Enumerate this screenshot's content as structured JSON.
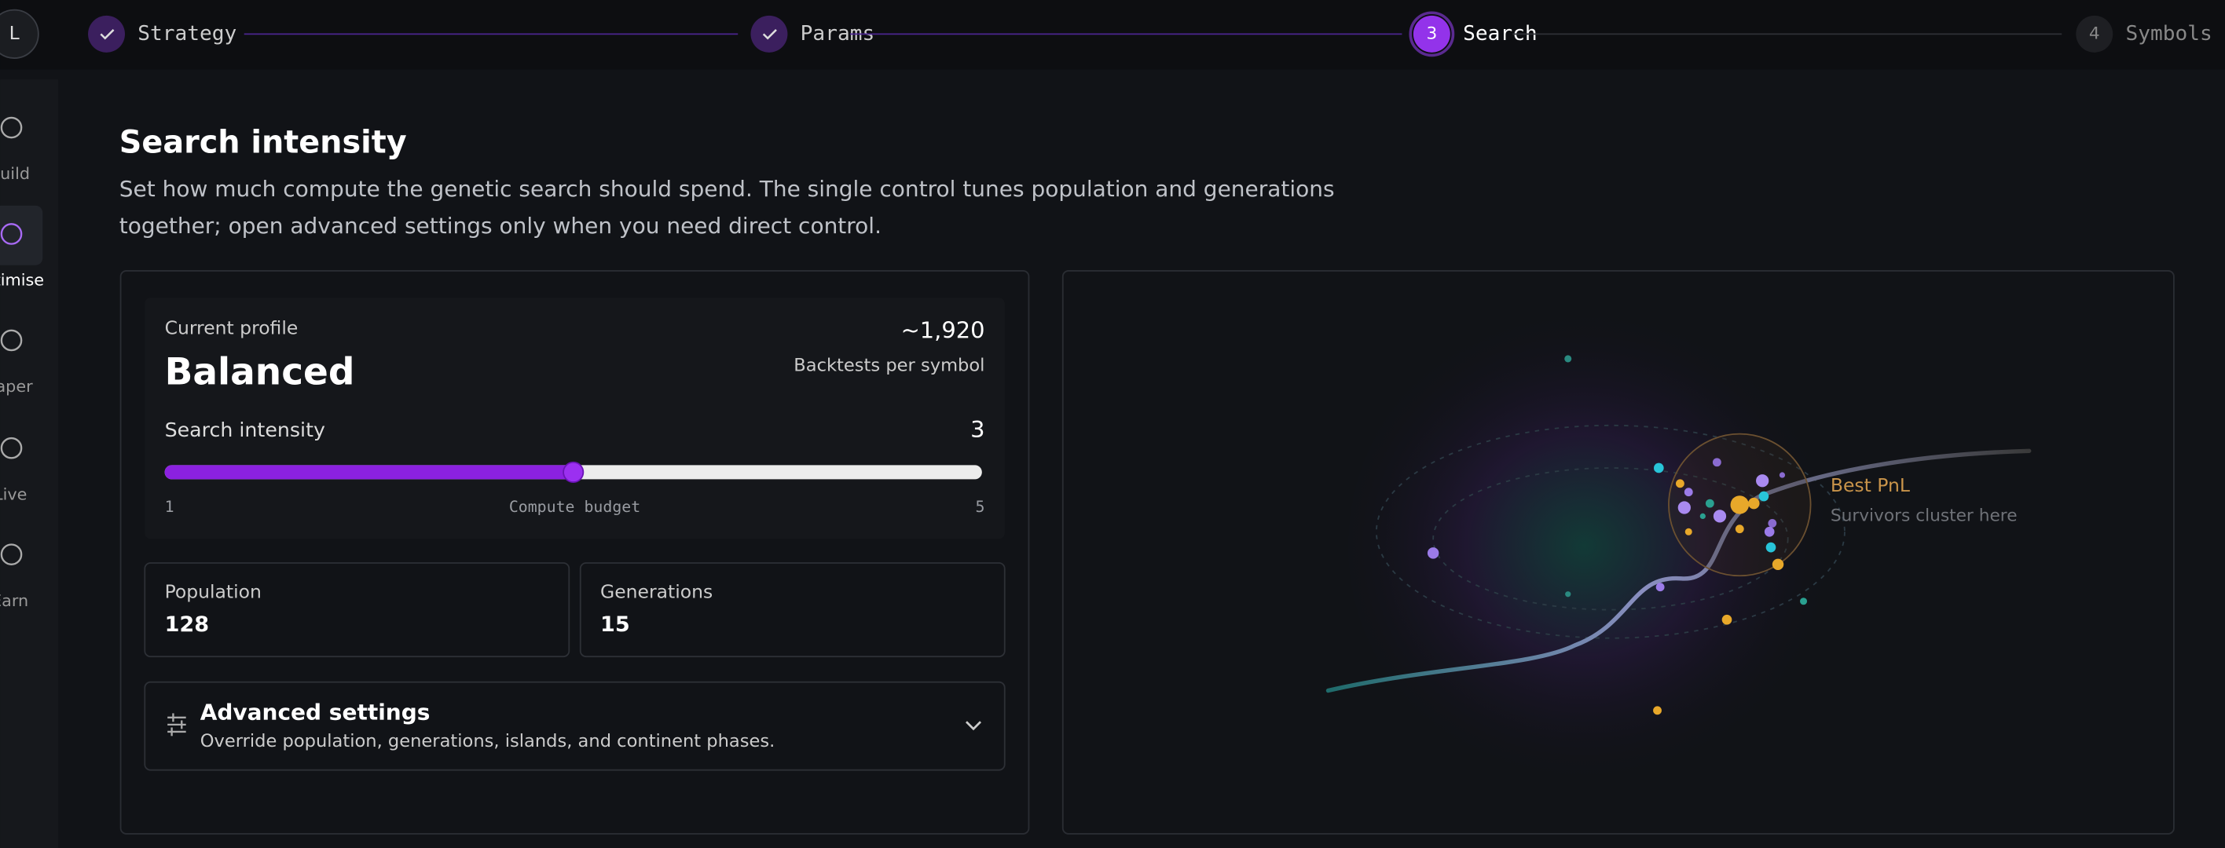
{
  "avatar": "L",
  "steps": [
    {
      "label": "Strategy",
      "status": "done"
    },
    {
      "label": "Params",
      "status": "done"
    },
    {
      "number": "3",
      "label": "Search",
      "status": "active"
    },
    {
      "number": "4",
      "label": "Symbols",
      "status": "todo"
    }
  ],
  "sidebar": [
    {
      "label": "Build",
      "active": false
    },
    {
      "label": "Optimise",
      "active": true
    },
    {
      "label": "Paper",
      "active": false
    },
    {
      "label": "Live",
      "active": false
    },
    {
      "label": "Earn",
      "active": false
    }
  ],
  "section": {
    "title": "Search intensity",
    "description": [
      "Set how much compute the genetic search should spend. The single control tunes population and generations",
      "together; open advanced settings only when you need direct control."
    ]
  },
  "profile": {
    "caption": "Current profile",
    "name": "Balanced",
    "backtests": "~1,920",
    "backtests_label": "Backtests per symbol"
  },
  "slider": {
    "label": "Search intensity",
    "value": 3,
    "min": 1,
    "max": 5,
    "caption": "Compute budget"
  },
  "stats": [
    {
      "label": "Population",
      "value": 128
    },
    {
      "label": "Generations",
      "value": 15
    }
  ],
  "advanced": {
    "title": "Advanced settings",
    "subtitle": "Override population, generations, islands, and continent phases."
  },
  "visual": {
    "title": "Best PnL",
    "subtitle": "Survivors cluster here"
  }
}
